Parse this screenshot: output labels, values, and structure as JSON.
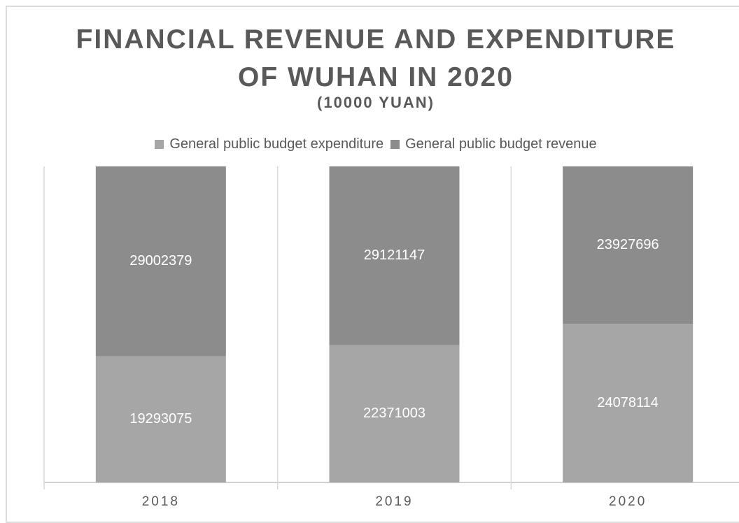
{
  "chart_data": {
    "type": "bar",
    "stacked": "percent",
    "title": "FINANCIAL REVENUE AND EXPENDITURE OF WUHAN IN 2020",
    "subtitle": "(10000 YUAN)",
    "categories": [
      "2018",
      "2019",
      "2020"
    ],
    "series": [
      {
        "name": "General public budget expenditure",
        "color": "#a6a6a6",
        "values": [
          19293075,
          22371003,
          24078114
        ]
      },
      {
        "name": "General public budget revenue",
        "color": "#8c8c8c",
        "values": [
          29002379,
          29121147,
          23927696
        ]
      }
    ],
    "legend": "top"
  }
}
